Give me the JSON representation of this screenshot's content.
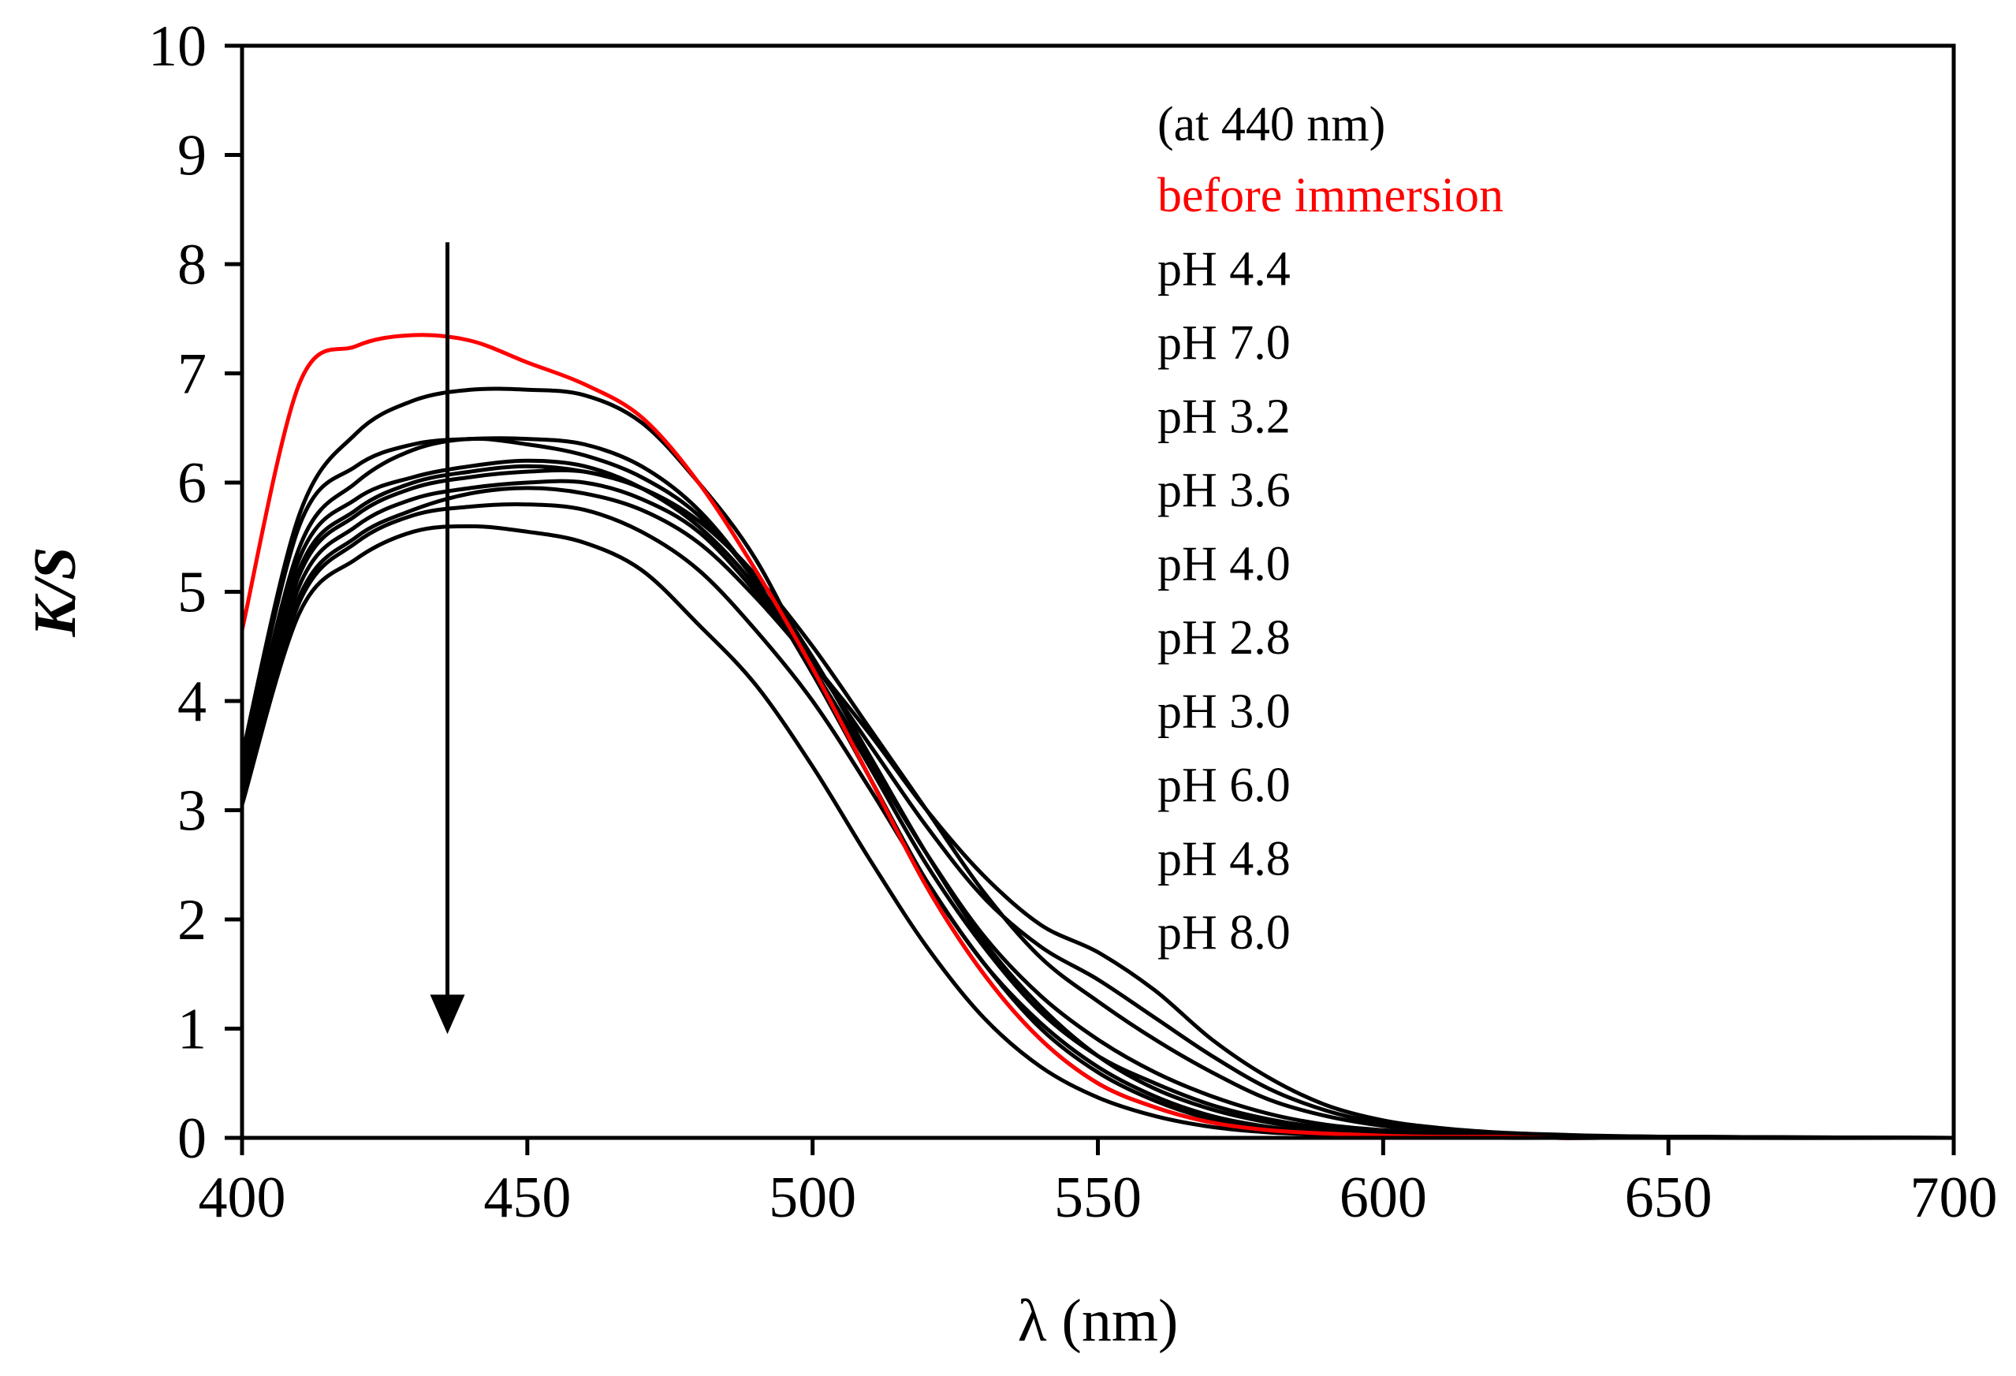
{
  "chart_data": {
    "type": "line",
    "xlabel": "λ (nm)",
    "ylabel": "K/S",
    "xlim": [
      400,
      700
    ],
    "ylim": [
      0,
      10
    ],
    "xticks": [
      400,
      450,
      500,
      550,
      600,
      650,
      700
    ],
    "yticks": [
      0,
      1,
      2,
      3,
      4,
      5,
      6,
      7,
      8,
      9,
      10
    ],
    "grid": false,
    "legend_placement": "top-right",
    "legend_header": "(at 440 nm)",
    "x": [
      400,
      410,
      420,
      430,
      440,
      450,
      460,
      470,
      480,
      490,
      500,
      510,
      520,
      530,
      540,
      550,
      560,
      570,
      580,
      590,
      600,
      610,
      620,
      630,
      650,
      700
    ],
    "series": [
      {
        "name": "before immersion",
        "color": "#ff0000",
        "values": [
          4.65,
          6.9,
          7.25,
          7.35,
          7.3,
          7.1,
          6.9,
          6.6,
          6.0,
          5.2,
          4.3,
          3.3,
          2.3,
          1.5,
          0.9,
          0.5,
          0.28,
          0.14,
          0.07,
          0.04,
          0.02,
          0.01,
          0.01,
          0.0,
          0.0,
          0.0
        ]
      },
      {
        "name": "pH 4.4",
        "color": "#000000",
        "values": [
          3.5,
          5.7,
          6.45,
          6.75,
          6.85,
          6.85,
          6.8,
          6.55,
          6.0,
          5.3,
          4.3,
          3.3,
          2.3,
          1.5,
          0.9,
          0.5,
          0.28,
          0.14,
          0.07,
          0.04,
          0.02,
          0.01,
          0.01,
          0.0,
          0.0,
          0.0
        ]
      },
      {
        "name": "pH 7.0",
        "color": "#000000",
        "values": [
          3.4,
          5.6,
          6.15,
          6.35,
          6.4,
          6.4,
          6.35,
          6.15,
          5.75,
          5.1,
          4.25,
          3.3,
          2.35,
          1.6,
          1.0,
          0.6,
          0.34,
          0.17,
          0.08,
          0.04,
          0.02,
          0.01,
          0.01,
          0.0,
          0.0,
          0.0
        ]
      },
      {
        "name": "pH 3.2",
        "color": "#000000",
        "values": [
          3.3,
          5.4,
          6.0,
          6.3,
          6.4,
          6.35,
          6.25,
          6.05,
          5.7,
          5.1,
          4.3,
          3.4,
          2.5,
          1.75,
          1.15,
          0.75,
          0.5,
          0.3,
          0.17,
          0.09,
          0.05,
          0.03,
          0.02,
          0.01,
          0.0,
          0.0
        ]
      },
      {
        "name": "pH 3.6",
        "color": "#000000",
        "values": [
          3.3,
          5.3,
          5.85,
          6.05,
          6.15,
          6.2,
          6.15,
          5.95,
          5.6,
          5.05,
          4.3,
          3.45,
          2.6,
          1.85,
          1.3,
          0.9,
          0.6,
          0.38,
          0.22,
          0.12,
          0.07,
          0.04,
          0.02,
          0.01,
          0.0,
          0.0
        ]
      },
      {
        "name": "pH 4.0",
        "color": "#000000",
        "values": [
          3.2,
          5.2,
          5.75,
          6.0,
          6.1,
          6.15,
          6.1,
          5.95,
          5.65,
          5.15,
          4.5,
          3.75,
          3.0,
          2.25,
          1.65,
          1.25,
          0.9,
          0.6,
          0.35,
          0.2,
          0.11,
          0.06,
          0.04,
          0.02,
          0.01,
          0.0
        ]
      },
      {
        "name": "pH 2.8",
        "color": "#000000",
        "values": [
          3.2,
          5.15,
          5.7,
          5.95,
          6.05,
          6.1,
          6.1,
          5.95,
          5.65,
          5.15,
          4.4,
          3.5,
          2.6,
          1.8,
          1.2,
          0.75,
          0.45,
          0.26,
          0.14,
          0.07,
          0.04,
          0.02,
          0.01,
          0.0,
          0.0,
          0.0
        ]
      },
      {
        "name": "pH 3.0",
        "color": "#000000",
        "values": [
          3.15,
          5.05,
          5.6,
          5.85,
          5.95,
          6.0,
          6.0,
          5.85,
          5.55,
          5.0,
          4.35,
          3.6,
          2.85,
          2.2,
          1.75,
          1.45,
          1.1,
          0.75,
          0.45,
          0.25,
          0.13,
          0.07,
          0.04,
          0.02,
          0.01,
          0.0
        ]
      },
      {
        "name": "pH 6.0",
        "color": "#000000",
        "values": [
          3.1,
          4.95,
          5.5,
          5.75,
          5.9,
          5.95,
          5.9,
          5.75,
          5.45,
          4.95,
          4.35,
          3.7,
          3.0,
          2.4,
          1.95,
          1.7,
          1.35,
          0.9,
          0.55,
          0.3,
          0.16,
          0.09,
          0.05,
          0.03,
          0.01,
          0.0
        ]
      },
      {
        "name": "pH 4.8",
        "color": "#000000",
        "values": [
          3.1,
          4.9,
          5.45,
          5.7,
          5.78,
          5.8,
          5.75,
          5.55,
          5.2,
          4.65,
          4.0,
          3.2,
          2.35,
          1.6,
          1.05,
          0.65,
          0.38,
          0.2,
          0.1,
          0.05,
          0.03,
          0.01,
          0.01,
          0.0,
          0.0,
          0.0
        ]
      },
      {
        "name": "pH 8.0",
        "color": "#000000",
        "values": [
          3.05,
          4.8,
          5.3,
          5.55,
          5.6,
          5.55,
          5.45,
          5.2,
          4.7,
          4.15,
          3.4,
          2.55,
          1.75,
          1.1,
          0.65,
          0.37,
          0.2,
          0.1,
          0.05,
          0.03,
          0.01,
          0.01,
          0.0,
          0.0,
          0.0,
          0.0
        ]
      }
    ],
    "annotations": [
      {
        "type": "arrow",
        "direction": "down",
        "x": 436,
        "from_y": 8.2,
        "to_y": 0.95
      }
    ]
  }
}
